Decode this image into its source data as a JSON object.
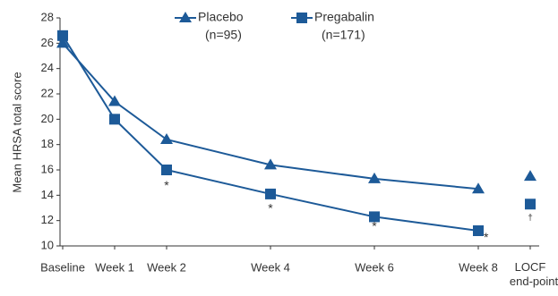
{
  "chart_data": {
    "type": "line",
    "y_label": "Mean HRSA total score",
    "x": [
      0,
      1,
      2,
      4,
      6,
      8
    ],
    "endpoint_x": 9,
    "series": [
      {
        "name": "Placebo",
        "sample": "(n=95)",
        "marker": "triangle",
        "color": "#1d5a98",
        "values": [
          26.0,
          21.4,
          18.4,
          16.4,
          15.3,
          14.5
        ],
        "endpoint_value": 15.5
      },
      {
        "name": "Pregabalin",
        "sample": "(n=171)",
        "marker": "square",
        "color": "#1d5a98",
        "values": [
          26.6,
          20.0,
          16.0,
          14.1,
          12.3,
          11.2
        ],
        "endpoint_value": 13.3
      }
    ],
    "xlim": [
      0,
      9
    ],
    "xticks": [
      {
        "value": 0,
        "label": "Baseline"
      },
      {
        "value": 1,
        "label": "Week 1"
      },
      {
        "value": 2,
        "label": "Week 2"
      },
      {
        "value": 4,
        "label": "Week 4"
      },
      {
        "value": 6,
        "label": "Week 6"
      },
      {
        "value": 8,
        "label": "Week 8"
      },
      {
        "value": 9,
        "label": "LOCF end-point"
      }
    ],
    "ylim": [
      10,
      28
    ],
    "yticks": [
      10,
      12,
      14,
      16,
      18,
      20,
      22,
      24,
      26,
      28
    ],
    "annotations": [
      {
        "x": 2,
        "y": 14.7,
        "text": "*"
      },
      {
        "x": 4,
        "y": 12.9,
        "text": "*"
      },
      {
        "x": 6,
        "y": 11.5,
        "text": "*"
      },
      {
        "x": 8.15,
        "y": 10.6,
        "text": "*"
      },
      {
        "x": 9,
        "y": 12.2,
        "text": "†"
      }
    ],
    "legend": "top"
  }
}
